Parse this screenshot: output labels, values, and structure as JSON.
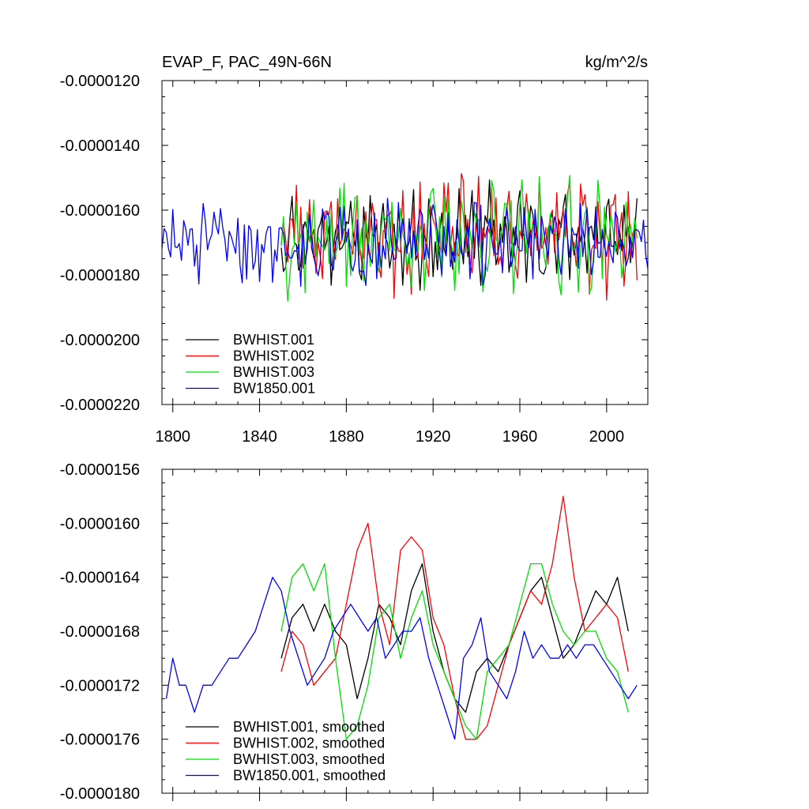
{
  "chart_data": [
    {
      "type": "line",
      "title_left": "EVAP_F, PAC_49N-66N",
      "title_right": "kg/m^2/s",
      "xlim": [
        1795,
        2019
      ],
      "ylim": [
        -2.2e-05,
        -1.2e-05
      ],
      "x_ticks": [
        1800,
        1840,
        1880,
        1920,
        1960,
        2000
      ],
      "x_tick_labels": [
        "1800",
        "1840",
        "1880",
        "1920",
        "1960",
        "2000"
      ],
      "y_ticks": [
        -1.2e-05,
        -1.4e-05,
        -1.6e-05,
        -1.8e-05,
        -2e-05,
        -2.2e-05
      ],
      "y_tick_labels": [
        "-0.0000120",
        "-0.0000140",
        "-0.0000160",
        "-0.0000180",
        "-0.0000200",
        "-0.0000220"
      ],
      "legend_position": "bottom-left",
      "series": [
        {
          "name": "BWHIST.001",
          "color": "#000000",
          "start": 1850,
          "end": 2014,
          "mean": -1.68e-05,
          "amp": 1e-06,
          "noise": 9e-07,
          "seed": 11
        },
        {
          "name": "BWHIST.002",
          "color": "#ff0000",
          "start": 1850,
          "end": 2014,
          "mean": -1.67e-05,
          "amp": 1.1e-06,
          "noise": 1.1e-06,
          "seed": 23
        },
        {
          "name": "BWHIST.003",
          "color": "#00e000",
          "start": 1850,
          "end": 2014,
          "mean": -1.68e-05,
          "amp": 1e-06,
          "noise": 1.1e-06,
          "seed": 37
        },
        {
          "name": "BW1850.001",
          "color": "#0000ff",
          "start": 1795,
          "end": 2019,
          "mean": -1.7e-05,
          "amp": 6e-07,
          "noise": 1e-06,
          "seed": 51
        }
      ]
    },
    {
      "type": "line",
      "xlim": [
        1795,
        2019
      ],
      "ylim": [
        -1.8e-05,
        -1.56e-05
      ],
      "x_ticks": [
        1800,
        1840,
        1880,
        1920,
        1960,
        2000
      ],
      "y_ticks": [
        -1.56e-05,
        -1.6e-05,
        -1.64e-05,
        -1.68e-05,
        -1.72e-05,
        -1.76e-05,
        -1.8e-05
      ],
      "y_tick_labels": [
        "-0.0000156",
        "-0.0000160",
        "-0.0000164",
        "-0.0000168",
        "-0.0000172",
        "-0.0000176",
        "-0.0000180"
      ],
      "legend_position": "bottom-left",
      "series": [
        {
          "name": "BWHIST.001, smoothed",
          "color": "#000000",
          "x": [
            1850,
            1855,
            1860,
            1865,
            1870,
            1875,
            1880,
            1885,
            1890,
            1895,
            1900,
            1905,
            1910,
            1915,
            1920,
            1925,
            1930,
            1935,
            1940,
            1945,
            1950,
            1955,
            1960,
            1965,
            1970,
            1975,
            1980,
            1985,
            1990,
            1995,
            2000,
            2005,
            2010
          ],
          "y": [
            -1.7e-05,
            -1.67e-05,
            -1.66e-05,
            -1.68e-05,
            -1.66e-05,
            -1.68e-05,
            -1.69e-05,
            -1.73e-05,
            -1.7e-05,
            -1.66e-05,
            -1.67e-05,
            -1.69e-05,
            -1.65e-05,
            -1.63e-05,
            -1.68e-05,
            -1.71e-05,
            -1.73e-05,
            -1.74e-05,
            -1.71e-05,
            -1.7e-05,
            -1.71e-05,
            -1.69e-05,
            -1.67e-05,
            -1.65e-05,
            -1.64e-05,
            -1.67e-05,
            -1.7e-05,
            -1.69e-05,
            -1.67e-05,
            -1.65e-05,
            -1.66e-05,
            -1.64e-05,
            -1.68e-05
          ]
        },
        {
          "name": "BWHIST.002, smoothed",
          "color": "#ff0000",
          "x": [
            1850,
            1855,
            1860,
            1865,
            1870,
            1875,
            1880,
            1885,
            1890,
            1895,
            1900,
            1905,
            1910,
            1915,
            1920,
            1925,
            1930,
            1935,
            1940,
            1945,
            1950,
            1955,
            1960,
            1965,
            1970,
            1975,
            1980,
            1985,
            1990,
            1995,
            2000,
            2005,
            2010
          ],
          "y": [
            -1.71e-05,
            -1.68e-05,
            -1.69e-05,
            -1.72e-05,
            -1.71e-05,
            -1.7e-05,
            -1.66e-05,
            -1.62e-05,
            -1.6e-05,
            -1.66e-05,
            -1.69e-05,
            -1.62e-05,
            -1.61e-05,
            -1.62e-05,
            -1.67e-05,
            -1.69e-05,
            -1.73e-05,
            -1.76e-05,
            -1.76e-05,
            -1.75e-05,
            -1.72e-05,
            -1.69e-05,
            -1.67e-05,
            -1.65e-05,
            -1.66e-05,
            -1.63e-05,
            -1.58e-05,
            -1.64e-05,
            -1.68e-05,
            -1.67e-05,
            -1.66e-05,
            -1.67e-05,
            -1.71e-05
          ]
        },
        {
          "name": "BWHIST.003, smoothed",
          "color": "#00e000",
          "x": [
            1850,
            1855,
            1860,
            1865,
            1870,
            1875,
            1880,
            1885,
            1890,
            1895,
            1900,
            1905,
            1910,
            1915,
            1920,
            1925,
            1930,
            1935,
            1940,
            1945,
            1950,
            1955,
            1960,
            1965,
            1970,
            1975,
            1980,
            1985,
            1990,
            1995,
            2000,
            2005,
            2010
          ],
          "y": [
            -1.68e-05,
            -1.64e-05,
            -1.63e-05,
            -1.65e-05,
            -1.63e-05,
            -1.7e-05,
            -1.76e-05,
            -1.75e-05,
            -1.72e-05,
            -1.67e-05,
            -1.66e-05,
            -1.7e-05,
            -1.67e-05,
            -1.65e-05,
            -1.69e-05,
            -1.71e-05,
            -1.73e-05,
            -1.75e-05,
            -1.76e-05,
            -1.71e-05,
            -1.7e-05,
            -1.69e-05,
            -1.66e-05,
            -1.63e-05,
            -1.63e-05,
            -1.66e-05,
            -1.68e-05,
            -1.69e-05,
            -1.68e-05,
            -1.68e-05,
            -1.7e-05,
            -1.71e-05,
            -1.74e-05
          ]
        },
        {
          "name": "BW1850.001, smoothed",
          "color": "#0000ff",
          "x": [
            1797,
            1800,
            1803,
            1806,
            1810,
            1814,
            1818,
            1822,
            1826,
            1830,
            1834,
            1838,
            1842,
            1846,
            1850,
            1854,
            1858,
            1862,
            1866,
            1870,
            1874,
            1878,
            1882,
            1886,
            1890,
            1894,
            1898,
            1902,
            1906,
            1910,
            1914,
            1918,
            1922,
            1926,
            1930,
            1934,
            1938,
            1942,
            1946,
            1950,
            1954,
            1958,
            1962,
            1966,
            1970,
            1974,
            1978,
            1982,
            1986,
            1990,
            1994,
            1998,
            2002,
            2006,
            2010,
            2014
          ],
          "y": [
            -1.73e-05,
            -1.7e-05,
            -1.72e-05,
            -1.72e-05,
            -1.74e-05,
            -1.72e-05,
            -1.72e-05,
            -1.71e-05,
            -1.7e-05,
            -1.7e-05,
            -1.69e-05,
            -1.68e-05,
            -1.66e-05,
            -1.64e-05,
            -1.65e-05,
            -1.68e-05,
            -1.7e-05,
            -1.72e-05,
            -1.71e-05,
            -1.7e-05,
            -1.68e-05,
            -1.67e-05,
            -1.66e-05,
            -1.67e-05,
            -1.68e-05,
            -1.67e-05,
            -1.7e-05,
            -1.69e-05,
            -1.68e-05,
            -1.68e-05,
            -1.67e-05,
            -1.7e-05,
            -1.72e-05,
            -1.74e-05,
            -1.76e-05,
            -1.7e-05,
            -1.69e-05,
            -1.67e-05,
            -1.71e-05,
            -1.72e-05,
            -1.73e-05,
            -1.71e-05,
            -1.68e-05,
            -1.7e-05,
            -1.69e-05,
            -1.7e-05,
            -1.7e-05,
            -1.69e-05,
            -1.7e-05,
            -1.69e-05,
            -1.69e-05,
            -1.7e-05,
            -1.71e-05,
            -1.72e-05,
            -1.73e-05,
            -1.72e-05
          ]
        }
      ]
    }
  ]
}
